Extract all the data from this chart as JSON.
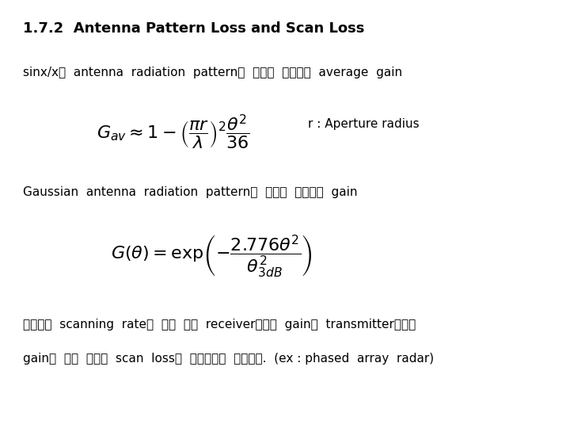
{
  "title": "1.7.2  Antenna Pattern Loss and Scan Loss",
  "line1": "sinx/x의  antenna  radiation  pattern을  가지는  안테나의  average  gain",
  "formula1": "$G_{av} \\approx 1 - \\left(\\dfrac{\\pi r}{\\lambda}\\right)^{2} \\dfrac{\\theta^{2}}{36}$",
  "annotation1": "r : Aperture radius",
  "line2": "Gaussian  antenna  radiation  pattern을  가지는  안테나의  gain",
  "formula2": "$G(\\theta) = \\exp\\!\\left(-\\dfrac{2.776\\theta^{2}}{\\theta^{2}_{3dB}}\\right)$",
  "line3_1": "안테나의  scanning  rate가  너무  빨라  receiver에서의  gain이  transmitter에서의",
  "line3_2": "gain과  같지  않다면  scan  loss가  부가적으로  발생한다.  (ex : phased  array  radar)",
  "bg_color": "#ffffff",
  "text_color": "#000000",
  "title_fontsize": 13,
  "body_fontsize": 11,
  "formula_fontsize": 16
}
